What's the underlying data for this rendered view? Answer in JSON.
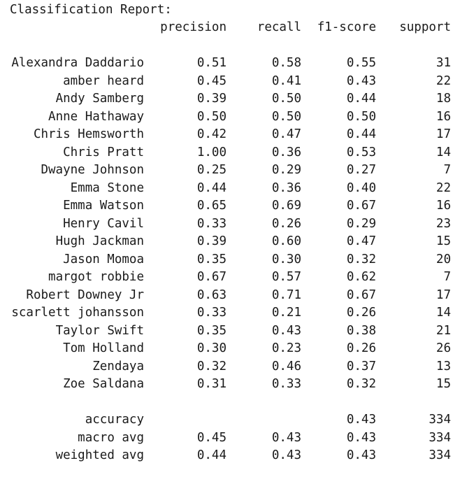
{
  "title": "Classification Report:",
  "headers": {
    "precision": "precision",
    "recall": "recall",
    "f1": "f1-score",
    "support": "support"
  },
  "rows": [
    {
      "label": "Alexandra Daddario",
      "precision": "0.51",
      "recall": "0.58",
      "f1": "0.55",
      "support": "31"
    },
    {
      "label": "amber heard",
      "precision": "0.45",
      "recall": "0.41",
      "f1": "0.43",
      "support": "22"
    },
    {
      "label": "Andy Samberg",
      "precision": "0.39",
      "recall": "0.50",
      "f1": "0.44",
      "support": "18"
    },
    {
      "label": "Anne Hathaway",
      "precision": "0.50",
      "recall": "0.50",
      "f1": "0.50",
      "support": "16"
    },
    {
      "label": "Chris Hemsworth",
      "precision": "0.42",
      "recall": "0.47",
      "f1": "0.44",
      "support": "17"
    },
    {
      "label": "Chris Pratt",
      "precision": "1.00",
      "recall": "0.36",
      "f1": "0.53",
      "support": "14"
    },
    {
      "label": "Dwayne Johnson",
      "precision": "0.25",
      "recall": "0.29",
      "f1": "0.27",
      "support": "7"
    },
    {
      "label": "Emma Stone",
      "precision": "0.44",
      "recall": "0.36",
      "f1": "0.40",
      "support": "22"
    },
    {
      "label": "Emma Watson",
      "precision": "0.65",
      "recall": "0.69",
      "f1": "0.67",
      "support": "16"
    },
    {
      "label": "Henry Cavil",
      "precision": "0.33",
      "recall": "0.26",
      "f1": "0.29",
      "support": "23"
    },
    {
      "label": "Hugh Jackman",
      "precision": "0.39",
      "recall": "0.60",
      "f1": "0.47",
      "support": "15"
    },
    {
      "label": "Jason Momoa",
      "precision": "0.35",
      "recall": "0.30",
      "f1": "0.32",
      "support": "20"
    },
    {
      "label": "margot robbie",
      "precision": "0.67",
      "recall": "0.57",
      "f1": "0.62",
      "support": "7"
    },
    {
      "label": "Robert Downey Jr",
      "precision": "0.63",
      "recall": "0.71",
      "f1": "0.67",
      "support": "17"
    },
    {
      "label": "scarlett johansson",
      "precision": "0.33",
      "recall": "0.21",
      "f1": "0.26",
      "support": "14"
    },
    {
      "label": "Taylor Swift",
      "precision": "0.35",
      "recall": "0.43",
      "f1": "0.38",
      "support": "21"
    },
    {
      "label": "Tom Holland",
      "precision": "0.30",
      "recall": "0.23",
      "f1": "0.26",
      "support": "26"
    },
    {
      "label": "Zendaya",
      "precision": "0.32",
      "recall": "0.46",
      "f1": "0.37",
      "support": "13"
    },
    {
      "label": "Zoe Saldana",
      "precision": "0.31",
      "recall": "0.33",
      "f1": "0.32",
      "support": "15"
    }
  ],
  "summary": [
    {
      "label": "accuracy",
      "precision": "",
      "recall": "",
      "f1": "0.43",
      "support": "334"
    },
    {
      "label": "macro avg",
      "precision": "0.45",
      "recall": "0.43",
      "f1": "0.43",
      "support": "334"
    },
    {
      "label": "weighted avg",
      "precision": "0.44",
      "recall": "0.43",
      "f1": "0.43",
      "support": "334"
    }
  ]
}
